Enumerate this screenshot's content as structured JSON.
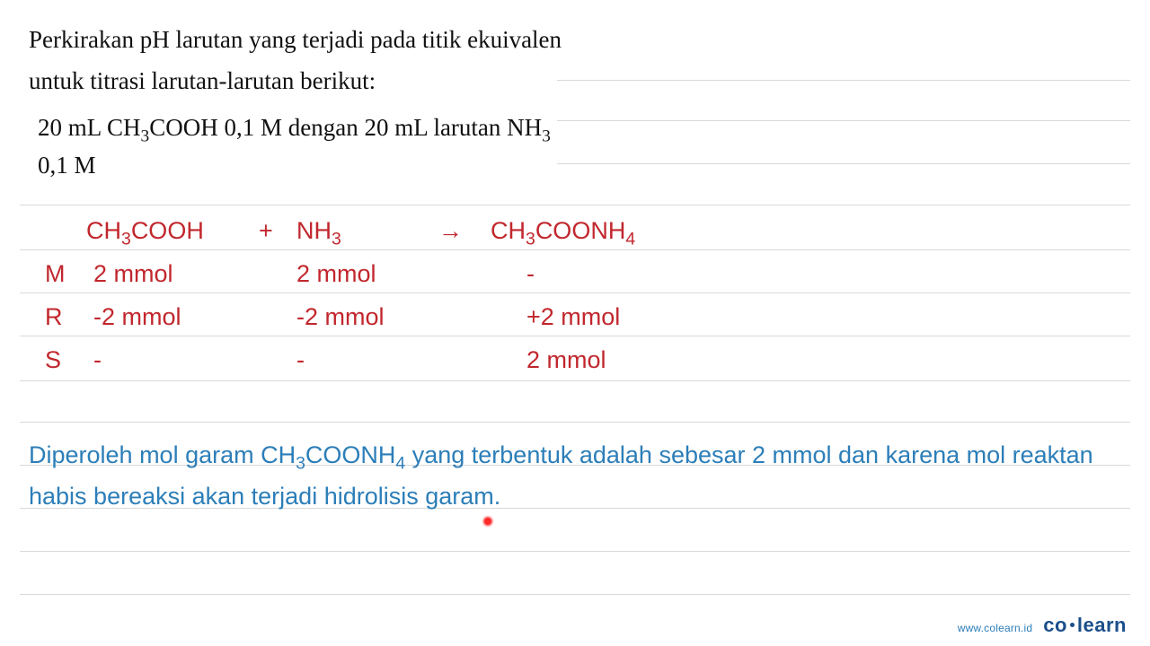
{
  "question": {
    "line1": "Perkirakan pH larutan yang terjadi pada titik ekuivalen",
    "line2": "untuk titrasi larutan-larutan berikut:",
    "detail_pre": "20 mL CH",
    "detail_sub1": "3",
    "detail_mid": "COOH 0,1 M dengan 20 mL larutan NH",
    "detail_sub2": "3",
    "detail_line2": "0,1 M"
  },
  "equation": {
    "r1": {
      "pre": "CH",
      "sub": "3",
      "post": "COOH"
    },
    "plus": "+",
    "r2": {
      "pre": "NH",
      "sub": "3",
      "post": ""
    },
    "arrow": "→",
    "p1": {
      "pre": "CH",
      "sub1": "3",
      "mid": "COONH",
      "sub2": "4",
      "post": ""
    }
  },
  "table": {
    "rows": [
      {
        "label": "M",
        "c1": "2 mmol",
        "c2": "2 mmol",
        "c3": "-"
      },
      {
        "label": "R",
        "c1": "-2 mmol",
        "c2": "-2 mmol",
        "c3": "+2 mmol"
      },
      {
        "label": "S",
        "c1": "-",
        "c2": "-",
        "c3": "2 mmol"
      }
    ]
  },
  "conclusion": {
    "pre": "Diperoleh mol garam CH",
    "sub1": "3",
    "mid": "COONH",
    "sub2": "4",
    "post": " yang terbentuk adalah sebesar 2 mmol dan karena mol reaktan habis bereaksi akan terjadi hidrolisis garam."
  },
  "footer": {
    "url": "www.colearn.id",
    "brand_a": "co",
    "brand_b": "learn"
  },
  "rules_y": [
    89,
    134,
    182,
    228,
    278,
    326,
    374,
    424,
    470,
    518,
    566,
    614,
    662
  ],
  "colors": {
    "question": "#111111",
    "equation": "#c1272d",
    "conclusion": "#2c7eb8",
    "rule": "#d9d9d9",
    "brand": "#1b4f8a"
  }
}
